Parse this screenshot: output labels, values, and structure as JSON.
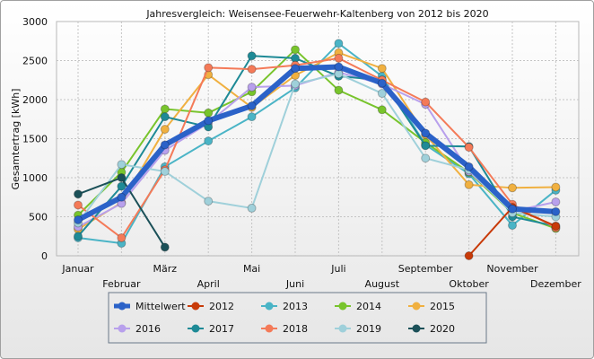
{
  "chart_data": {
    "type": "line",
    "title": "Jahresvergleich: Weisensee-Feuerwehr-Kaltenberg von 2012 bis 2020",
    "xlabel": "",
    "ylabel": "Gesamtertrag [kWh]",
    "ylim": [
      0,
      3000
    ],
    "yticks": [
      "0",
      "500",
      "1000",
      "1500",
      "2000",
      "2500",
      "3000"
    ],
    "grid": true,
    "legend_position": "bottom",
    "categories": [
      "Januar",
      "Februar",
      "März",
      "April",
      "Mai",
      "Juni",
      "Juli",
      "August",
      "September",
      "Oktober",
      "November",
      "Dezember"
    ],
    "series": [
      {
        "name": "2013",
        "color": "#4ab4c6",
        "values": [
          230,
          160,
          1140,
          1470,
          1780,
          2150,
          2720,
          2300,
          1420,
          1050,
          390,
          840
        ]
      },
      {
        "name": "2014",
        "color": "#78c42c",
        "values": [
          520,
          1070,
          1880,
          1830,
          2100,
          2640,
          2120,
          1870,
          1450,
          1070,
          550,
          350
        ]
      },
      {
        "name": "2015",
        "color": "#f0b040",
        "values": [
          340,
          680,
          1620,
          2320,
          1900,
          2310,
          2600,
          2400,
          1550,
          910,
          870,
          880
        ]
      },
      {
        "name": "2016",
        "color": "#b8a0ec",
        "values": [
          370,
          670,
          1350,
          1700,
          2160,
          2180,
          2350,
          2200,
          1940,
          1080,
          570,
          690
        ]
      },
      {
        "name": "2017",
        "color": "#1e8a96",
        "values": [
          250,
          890,
          1780,
          1650,
          2560,
          2530,
          2300,
          2250,
          1410,
          1400,
          500,
          380
        ]
      },
      {
        "name": "2018",
        "color": "#f47a58",
        "values": [
          650,
          230,
          1100,
          2410,
          2390,
          2440,
          2530,
          2250,
          1970,
          1390,
          660,
          360
        ]
      },
      {
        "name": "2019",
        "color": "#9fd0da",
        "values": [
          420,
          1170,
          1080,
          700,
          610,
          2200,
          2330,
          2080,
          1250,
          1100,
          550,
          500
        ]
      },
      {
        "name": "2020",
        "color": "#1b5058",
        "values": [
          790,
          1000,
          110,
          null,
          null,
          null,
          null,
          null,
          null,
          null,
          null,
          null
        ]
      },
      {
        "name": "2012",
        "color": "#c83a08",
        "values": [
          null,
          null,
          null,
          null,
          null,
          null,
          null,
          null,
          null,
          0,
          620,
          380
        ]
      },
      {
        "name": "Mittelwert",
        "color": "#2b62c8",
        "values": [
          460,
          750,
          1420,
          1730,
          1920,
          2400,
          2420,
          2210,
          1570,
          1140,
          600,
          565
        ],
        "thick": true
      }
    ],
    "legend_order": [
      "Mittelwert",
      "2012",
      "2013",
      "2014",
      "2015",
      "2016",
      "2017",
      "2018",
      "2019",
      "2020"
    ]
  }
}
